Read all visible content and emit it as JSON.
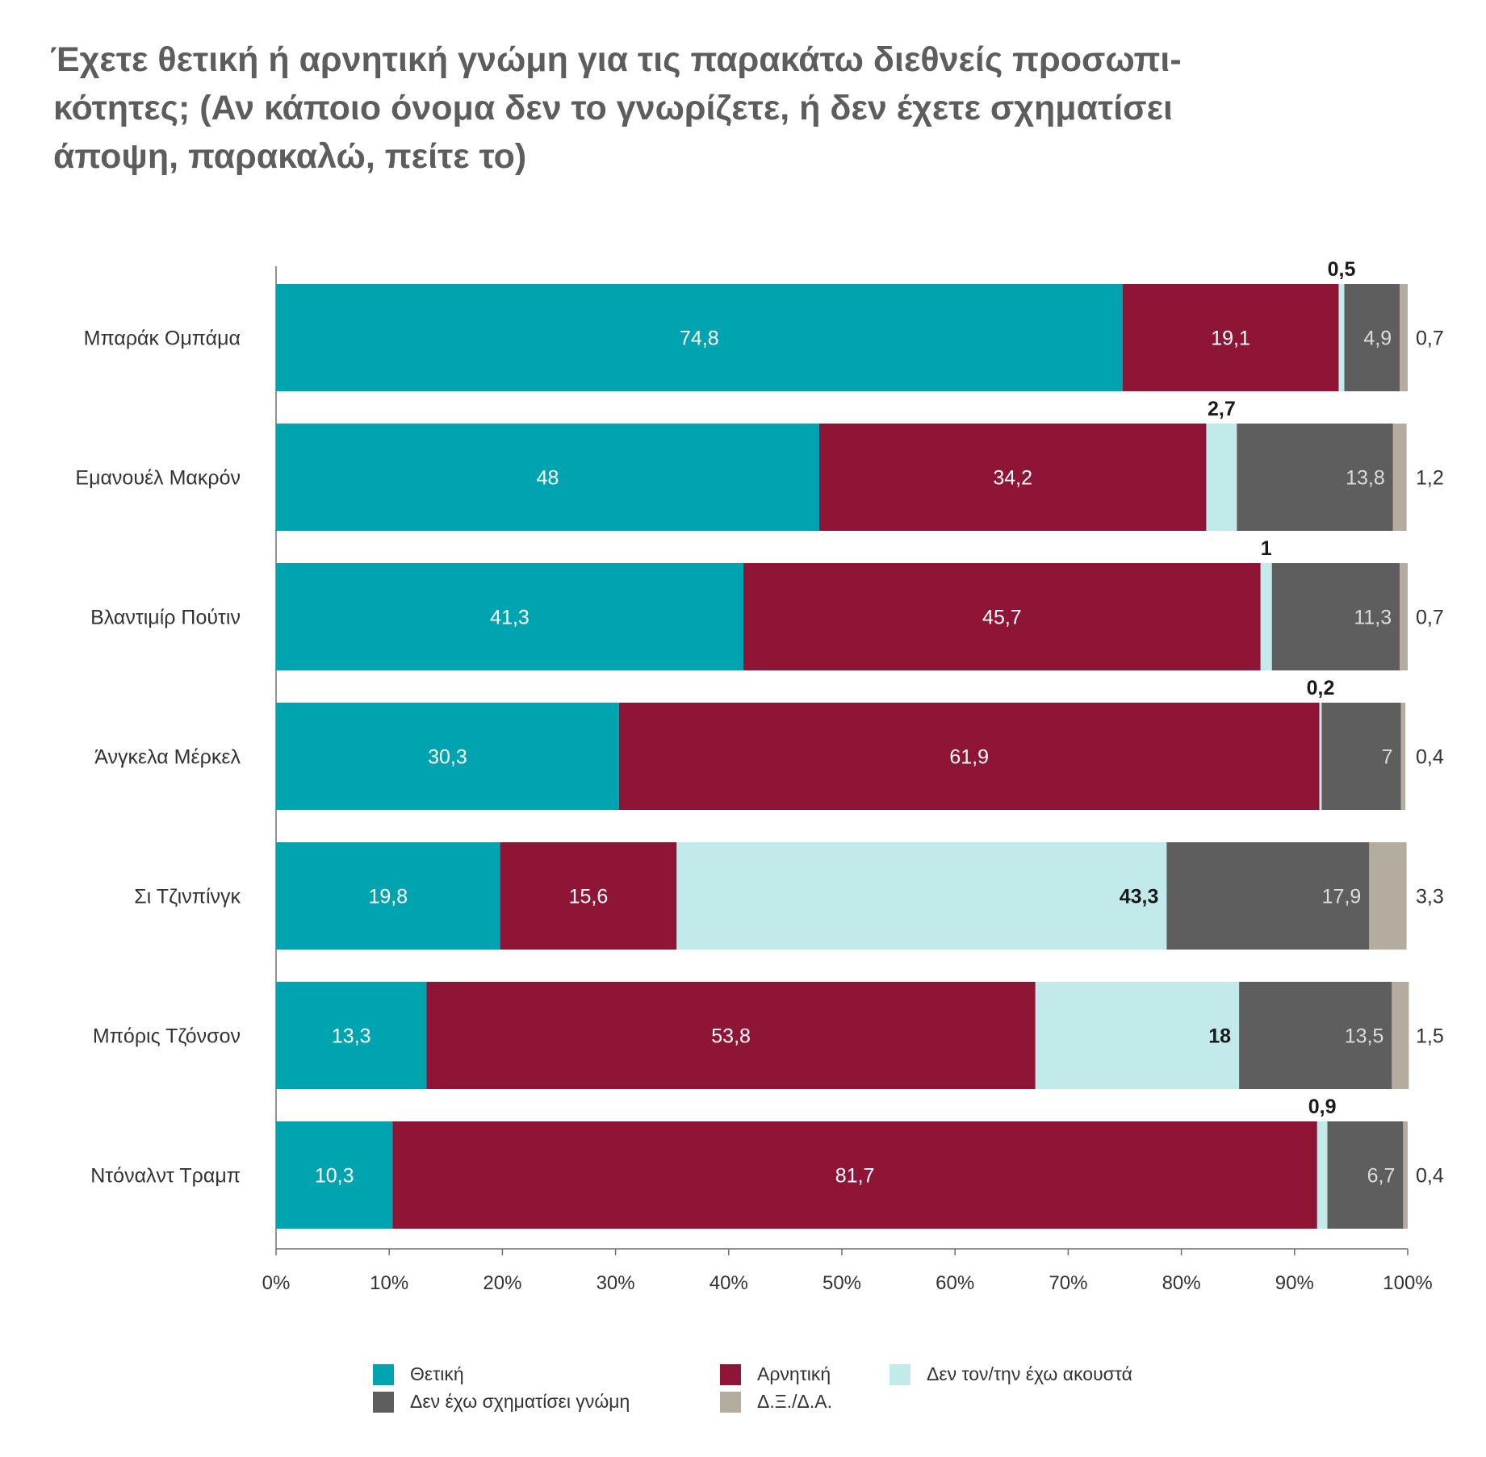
{
  "title_lines": [
    "Έχετε θετική ή αρνητική γνώμη για τις παρακάτω διεθνείς προσωπι-",
    "κότητες; (Αν κάποιο όνομα δεν το γνωρίζετε, ή δεν έχετε σχηματίσει",
    "άποψη, παρακαλώ, πείτε το)"
  ],
  "chart_data": {
    "type": "bar",
    "orientation": "horizontal",
    "stacked": true,
    "title": "Έχετε θετική ή αρνητική γνώμη για τις παρακάτω διεθνείς προσωπικότητες; (Αν κάποιο όνομα δεν το γνωρίζετε, ή δεν έχετε σχηματίσει άποψη, παρακαλώ, πείτε το)",
    "categories": [
      "Μπαράκ Ομπάμα",
      "Εμανουέλ Μακρόν",
      "Βλαντιμίρ Πούτιν",
      "Άνγκελα Μέρκελ",
      "Σι Τζινπίνγκ",
      "Μπόρις Τζόνσον",
      "Ντόναλντ Τραμπ"
    ],
    "series": [
      {
        "name": "Θετική",
        "color": "#00a3b0",
        "values": [
          74.8,
          48,
          41.3,
          30.3,
          19.8,
          13.3,
          10.3
        ],
        "labels": [
          "74,8",
          "48",
          "41,3",
          "30,3",
          "19,8",
          "13,3",
          "10,3"
        ]
      },
      {
        "name": "Αρνητική",
        "color": "#8f1537",
        "values": [
          19.1,
          34.2,
          45.7,
          61.9,
          15.6,
          53.8,
          81.7
        ],
        "labels": [
          "19,1",
          "34,2",
          "45,7",
          "61,9",
          "15,6",
          "53,8",
          "81,7"
        ]
      },
      {
        "name": "Δεν τον/την έχω ακουστά",
        "color": "#c3eaea",
        "values": [
          0.5,
          2.7,
          1,
          0.2,
          43.3,
          18,
          0.9
        ],
        "labels": [
          "0,5",
          "2,7",
          "1",
          "0,2",
          "43,3",
          "18",
          "0,9"
        ]
      },
      {
        "name": "Δεν έχω σχηματίσει γνώμη",
        "color": "#5e5e5e",
        "values": [
          4.9,
          13.8,
          11.3,
          7,
          17.9,
          13.5,
          6.7
        ],
        "labels": [
          "4,9",
          "13,8",
          "11,3",
          "7",
          "17,9",
          "13,5",
          "6,7"
        ]
      },
      {
        "name": "Δ.Ξ./Δ.Α.",
        "color": "#b5aca0",
        "values": [
          0.7,
          1.2,
          0.7,
          0.4,
          3.3,
          1.5,
          0.4
        ],
        "labels": [
          "0,7",
          "1,2",
          "0,7",
          "0,4",
          "3,3",
          "1,5",
          "0,4"
        ]
      }
    ],
    "x_ticks": [
      "0%",
      "10%",
      "20%",
      "30%",
      "40%",
      "50%",
      "60%",
      "70%",
      "80%",
      "90%",
      "100%"
    ],
    "xlim": [
      0,
      100
    ],
    "grid": false,
    "legend_position": "bottom"
  },
  "legend_items": [
    {
      "label": "Θετική",
      "color": "#00a3b0"
    },
    {
      "label": "Αρνητική",
      "color": "#8f1537"
    },
    {
      "label": "Δεν τον/την έχω ακουστά",
      "color": "#c3eaea"
    },
    {
      "label": "Δεν έχω σχηματίσει γνώμη",
      "color": "#5e5e5e"
    },
    {
      "label": "Δ.Ξ./Δ.Α.",
      "color": "#b5aca0"
    }
  ]
}
